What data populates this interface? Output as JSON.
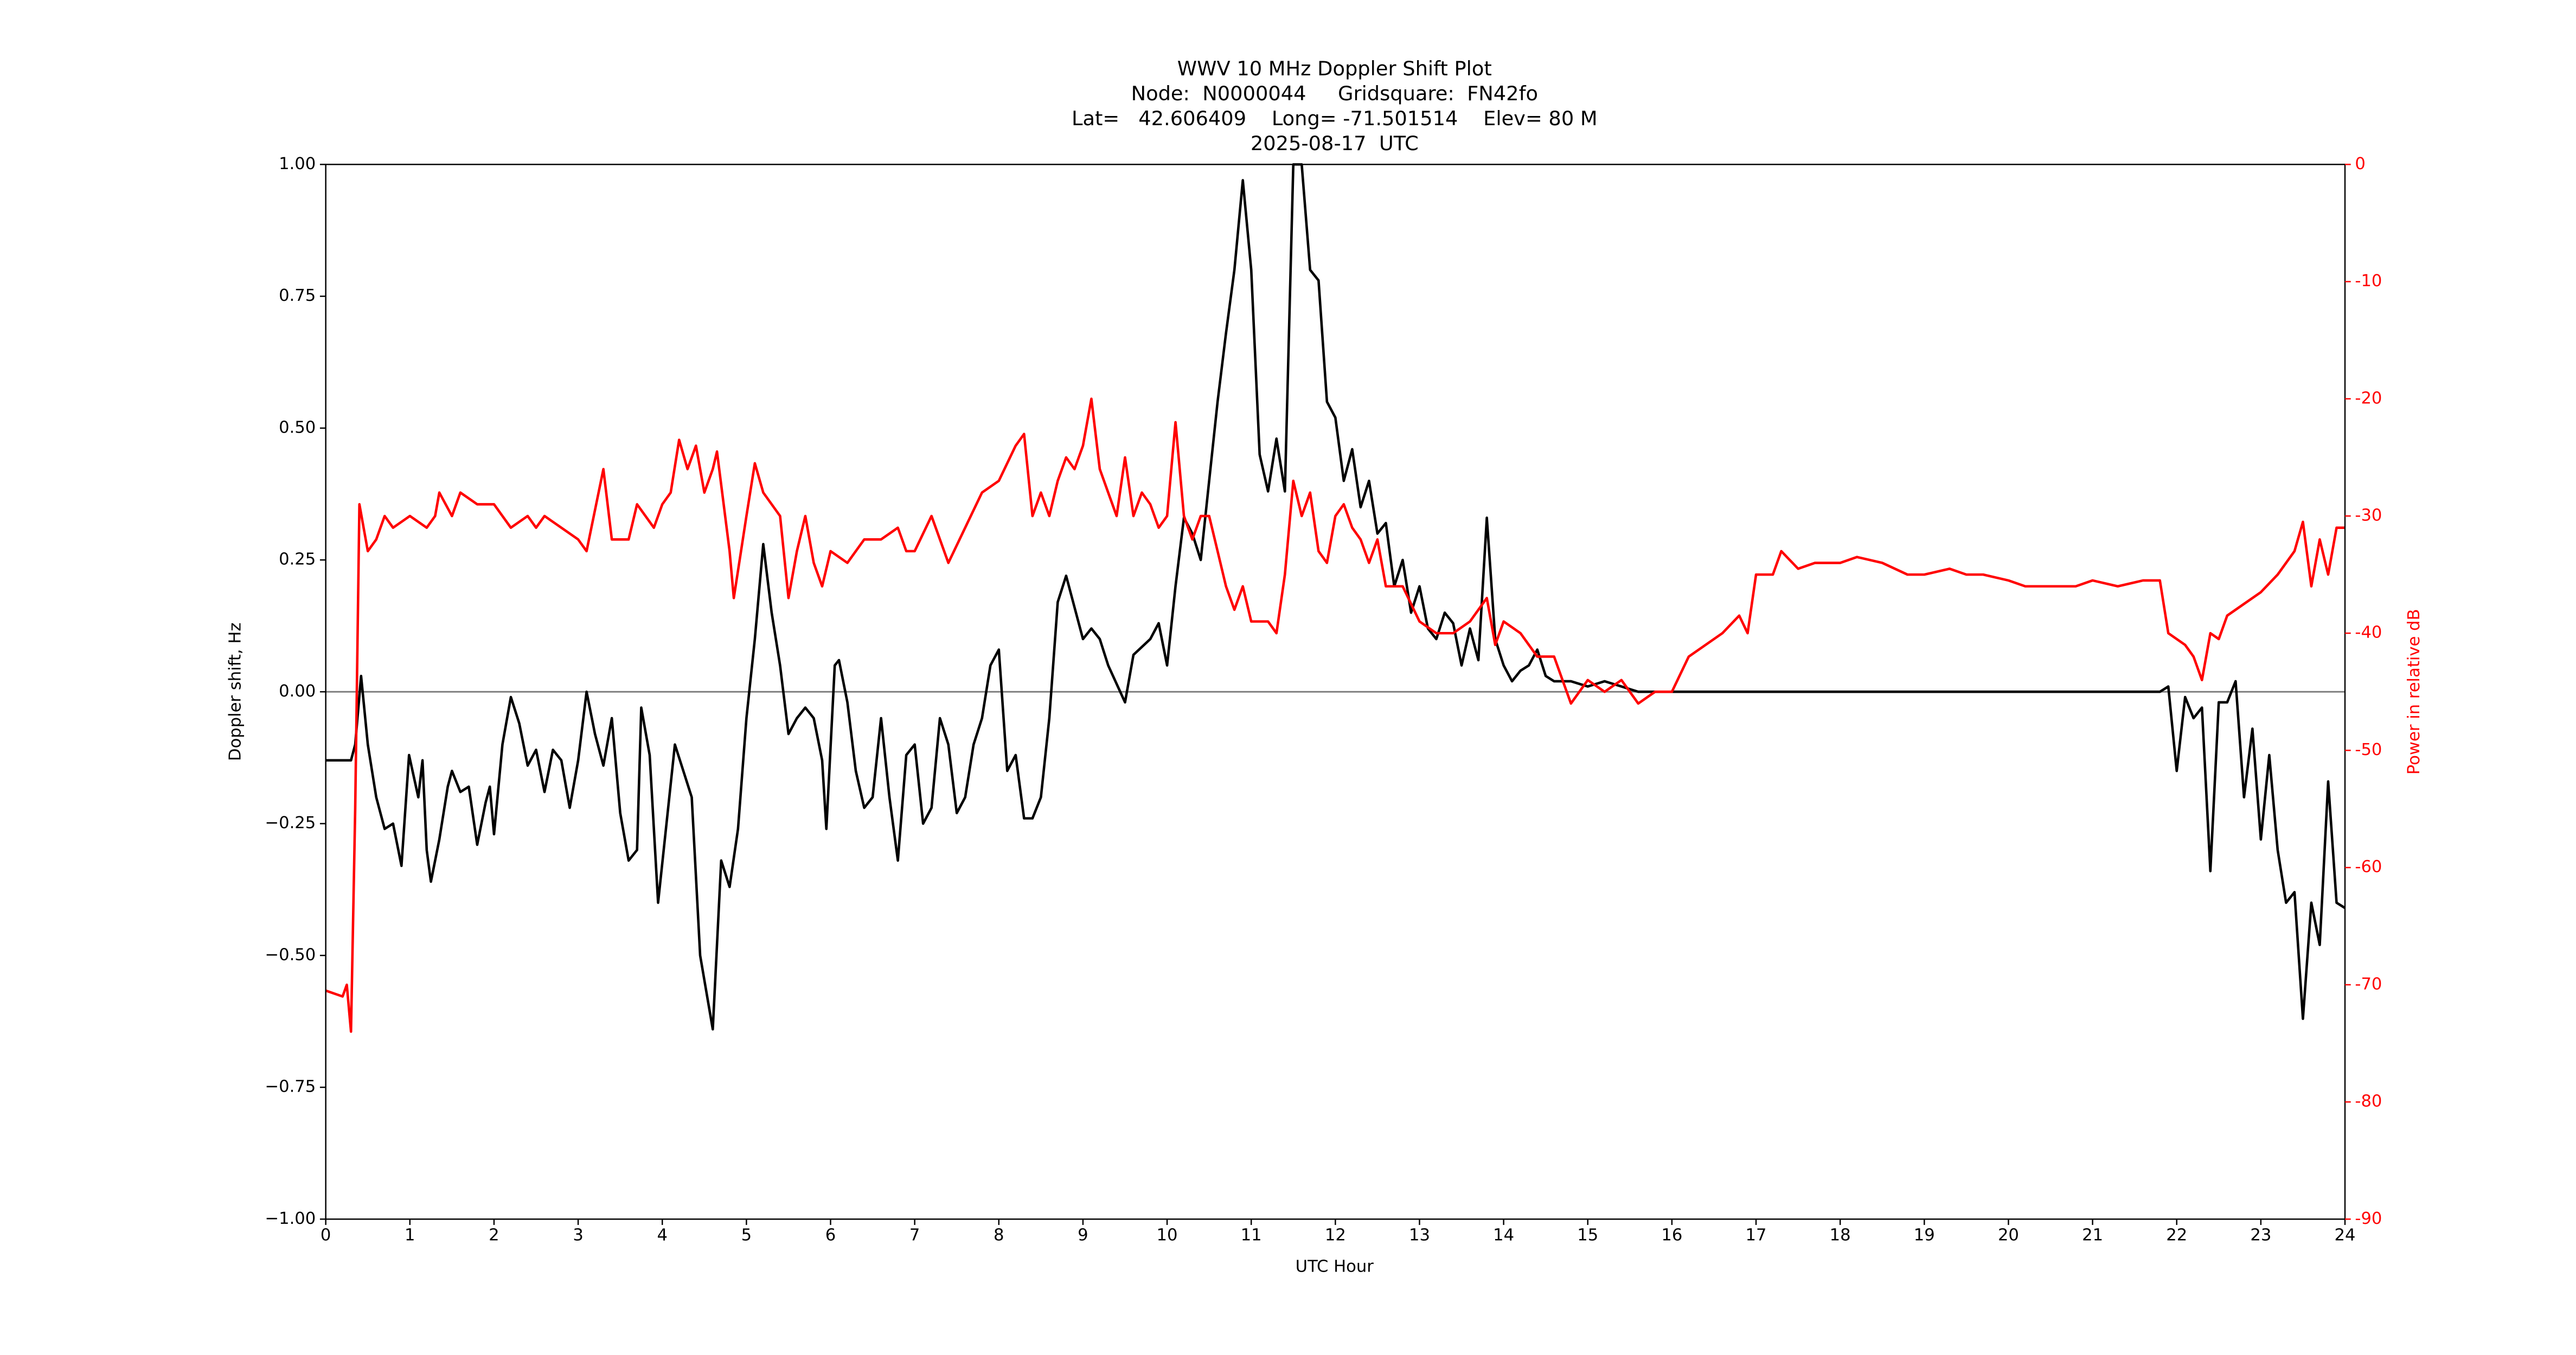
{
  "chart_data": {
    "type": "line",
    "title": [
      "WWV 10 MHz Doppler Shift Plot",
      "Node:  N0000044     Gridsquare:  FN42fo",
      "Lat=   42.606409    Long= -71.501514    Elev= 80 M",
      "2025-08-17  UTC"
    ],
    "xlabel": "UTC Hour",
    "ylabel": "Doppler shift, Hz",
    "y2label": "Power in relative dB",
    "y2color": "#ff0000",
    "xlim": [
      0,
      24
    ],
    "xticks": [
      0,
      1,
      2,
      3,
      4,
      5,
      6,
      7,
      8,
      9,
      10,
      11,
      12,
      13,
      14,
      15,
      16,
      17,
      18,
      19,
      20,
      21,
      22,
      23,
      24
    ],
    "ylim": [
      -1,
      1
    ],
    "yticks": [
      {
        "value": -1,
        "label": "−1.00"
      },
      {
        "value": -0.75,
        "label": "−0.75"
      },
      {
        "value": -0.5,
        "label": "−0.50"
      },
      {
        "value": -0.25,
        "label": "−0.25"
      },
      {
        "value": 0,
        "label": "0.00"
      },
      {
        "value": 0.25,
        "label": "0.25"
      },
      {
        "value": 0.5,
        "label": "0.50"
      },
      {
        "value": 0.75,
        "label": "0.75"
      },
      {
        "value": 1,
        "label": "1.00"
      }
    ],
    "y2lim": [
      -90,
      0
    ],
    "y2ticks": [
      -90,
      -80,
      -70,
      -60,
      -50,
      -40,
      -30,
      -20,
      -10,
      0
    ],
    "hline": 0,
    "hline_color": "#808080",
    "series": [
      {
        "color": "#000000",
        "x": [
          0,
          0.3,
          0.35,
          0.42,
          0.5,
          0.6,
          0.7,
          0.8,
          0.9,
          0.99,
          1.1,
          1.15,
          1.2,
          1.25,
          1.35,
          1.45,
          1.5,
          1.6,
          1.7,
          1.8,
          1.9,
          1.95,
          2.0,
          2.1,
          2.2,
          2.3,
          2.4,
          2.5,
          2.6,
          2.7,
          2.8,
          2.9,
          3.0,
          3.1,
          3.2,
          3.3,
          3.4,
          3.5,
          3.6,
          3.7,
          3.75,
          3.85,
          3.95,
          4.05,
          4.15,
          4.25,
          4.35,
          4.45,
          4.6,
          4.7,
          4.8,
          4.9,
          5.0,
          5.1,
          5.2,
          5.3,
          5.4,
          5.5,
          5.6,
          5.7,
          5.8,
          5.9,
          5.95,
          6.05,
          6.1,
          6.2,
          6.3,
          6.4,
          6.5,
          6.6,
          6.7,
          6.8,
          6.9,
          7.0,
          7.1,
          7.2,
          7.3,
          7.4,
          7.5,
          7.6,
          7.7,
          7.8,
          7.9,
          8.0,
          8.1,
          8.2,
          8.3,
          8.4,
          8.5,
          8.6,
          8.7,
          8.8,
          8.9,
          9.0,
          9.1,
          9.2,
          9.3,
          9.5,
          9.6,
          9.8,
          9.9,
          10.0,
          10.1,
          10.2,
          10.3,
          10.4,
          10.5,
          10.6,
          10.7,
          10.8,
          10.9,
          11.0,
          11.1,
          11.2,
          11.3,
          11.4,
          11.5,
          11.6,
          11.7,
          11.8,
          11.9,
          12.0,
          12.1,
          12.2,
          12.3,
          12.4,
          12.5,
          12.6,
          12.7,
          12.8,
          12.9,
          13.0,
          13.1,
          13.2,
          13.3,
          13.4,
          13.5,
          13.6,
          13.7,
          13.8,
          13.9,
          14.0,
          14.1,
          14.2,
          14.3,
          14.4,
          14.5,
          14.6,
          14.8,
          15.0,
          15.2,
          15.4,
          15.6,
          16.0,
          18.0,
          20.0,
          21.8,
          21.9,
          22.0,
          22.1,
          22.2,
          22.3,
          22.4,
          22.5,
          22.6,
          22.7,
          22.8,
          22.9,
          23.0,
          23.1,
          23.2,
          23.3,
          23.4,
          23.5,
          23.6,
          23.7,
          23.8,
          23.9,
          24.0
        ],
        "values": [
          -0.13,
          -0.13,
          -0.1,
          0.03,
          -0.1,
          -0.2,
          -0.26,
          -0.25,
          -0.33,
          -0.12,
          -0.2,
          -0.13,
          -0.3,
          -0.36,
          -0.28,
          -0.18,
          -0.15,
          -0.19,
          -0.18,
          -0.29,
          -0.21,
          -0.18,
          -0.27,
          -0.1,
          -0.01,
          -0.06,
          -0.14,
          -0.11,
          -0.19,
          -0.11,
          -0.13,
          -0.22,
          -0.13,
          0.0,
          -0.08,
          -0.14,
          -0.05,
          -0.23,
          -0.32,
          -0.3,
          -0.03,
          -0.12,
          -0.4,
          -0.25,
          -0.1,
          -0.15,
          -0.2,
          -0.5,
          -0.64,
          -0.32,
          -0.37,
          -0.26,
          -0.05,
          0.1,
          0.28,
          0.15,
          0.05,
          -0.08,
          -0.05,
          -0.03,
          -0.05,
          -0.13,
          -0.26,
          0.05,
          0.06,
          -0.02,
          -0.15,
          -0.22,
          -0.2,
          -0.05,
          -0.2,
          -0.32,
          -0.12,
          -0.1,
          -0.25,
          -0.22,
          -0.05,
          -0.1,
          -0.23,
          -0.2,
          -0.1,
          -0.05,
          0.05,
          0.08,
          -0.15,
          -0.12,
          -0.24,
          -0.24,
          -0.2,
          -0.05,
          0.17,
          0.22,
          0.16,
          0.1,
          0.12,
          0.1,
          0.05,
          -0.02,
          0.07,
          0.1,
          0.13,
          0.05,
          0.2,
          0.33,
          0.3,
          0.25,
          0.4,
          0.55,
          0.68,
          0.8,
          0.97,
          0.8,
          0.45,
          0.38,
          0.48,
          0.38,
          1.0,
          1.0,
          0.8,
          0.78,
          0.55,
          0.52,
          0.4,
          0.46,
          0.35,
          0.4,
          0.3,
          0.32,
          0.2,
          0.25,
          0.15,
          0.2,
          0.12,
          0.1,
          0.15,
          0.13,
          0.05,
          0.12,
          0.06,
          0.33,
          0.1,
          0.05,
          0.02,
          0.04,
          0.05,
          0.08,
          0.03,
          0.02,
          0.02,
          0.01,
          0.02,
          0.01,
          0.0,
          0.0,
          0.0,
          0.0,
          0.0,
          0.01,
          -0.15,
          -0.01,
          -0.05,
          -0.03,
          -0.34,
          -0.02,
          -0.02,
          0.02,
          -0.2,
          -0.07,
          -0.28,
          -0.12,
          -0.3,
          -0.4,
          -0.38,
          -0.62,
          -0.4,
          -0.48,
          -0.17,
          -0.4,
          -0.41
        ]
      },
      {
        "color": "#ff0000",
        "axis": "y2",
        "x": [
          0,
          0.2,
          0.25,
          0.3,
          0.35,
          0.4,
          0.5,
          0.6,
          0.7,
          0.8,
          1.0,
          1.2,
          1.3,
          1.35,
          1.5,
          1.6,
          1.8,
          2.0,
          2.2,
          2.4,
          2.5,
          2.6,
          2.8,
          3.0,
          3.1,
          3.3,
          3.4,
          3.6,
          3.7,
          3.9,
          4.0,
          4.1,
          4.2,
          4.3,
          4.4,
          4.5,
          4.6,
          4.65,
          4.8,
          4.85,
          5.0,
          5.1,
          5.2,
          5.4,
          5.5,
          5.6,
          5.7,
          5.8,
          5.9,
          6.0,
          6.2,
          6.4,
          6.6,
          6.8,
          6.9,
          7.0,
          7.2,
          7.4,
          7.6,
          7.8,
          8.0,
          8.2,
          8.3,
          8.4,
          8.5,
          8.6,
          8.7,
          8.8,
          8.9,
          9.0,
          9.1,
          9.2,
          9.3,
          9.4,
          9.5,
          9.6,
          9.7,
          9.8,
          9.9,
          10.0,
          10.1,
          10.2,
          10.3,
          10.4,
          10.5,
          10.6,
          10.7,
          10.8,
          10.9,
          11.0,
          11.2,
          11.3,
          11.4,
          11.5,
          11.6,
          11.7,
          11.8,
          11.9,
          12.0,
          12.1,
          12.2,
          12.3,
          12.4,
          12.5,
          12.6,
          12.8,
          13.0,
          13.2,
          13.4,
          13.6,
          13.8,
          13.9,
          14.0,
          14.2,
          14.4,
          14.6,
          14.8,
          15.0,
          15.2,
          15.4,
          15.6,
          15.8,
          16.0,
          16.2,
          16.4,
          16.6,
          16.8,
          16.9,
          17.0,
          17.2,
          17.3,
          17.5,
          17.7,
          18.0,
          18.2,
          18.5,
          18.8,
          19.0,
          19.3,
          19.5,
          19.7,
          20.0,
          20.2,
          20.5,
          20.8,
          21.0,
          21.3,
          21.6,
          21.8,
          21.9,
          22.1,
          22.2,
          22.3,
          22.4,
          22.5,
          22.6,
          22.8,
          23.0,
          23.2,
          23.4,
          23.5,
          23.6,
          23.7,
          23.8,
          23.9,
          24.0
        ],
        "values": [
          -70.5,
          -71,
          -70,
          -74,
          -55,
          -29,
          -33,
          -32,
          -30,
          -31,
          -30,
          -31,
          -30,
          -28,
          -30,
          -28,
          -29,
          -29,
          -31,
          -30,
          -31,
          -30,
          -31,
          -32,
          -33,
          -26,
          -32,
          -32,
          -29,
          -31,
          -29,
          -28,
          -23.5,
          -26,
          -24,
          -28,
          -26,
          -24.5,
          -33,
          -37,
          -30,
          -25.5,
          -28,
          -30,
          -37,
          -33,
          -30,
          -34,
          -36,
          -33,
          -34,
          -32,
          -32,
          -31,
          -33,
          -33,
          -30,
          -34,
          -31,
          -28,
          -27,
          -24,
          -23,
          -30,
          -28,
          -30,
          -27,
          -25,
          -26,
          -24,
          -20,
          -26,
          -28,
          -30,
          -25,
          -30,
          -28,
          -29,
          -31,
          -30,
          -22,
          -30,
          -32,
          -30,
          -30,
          -33,
          -36,
          -38,
          -36,
          -39,
          -39,
          -40,
          -35,
          -27,
          -30,
          -28,
          -33,
          -34,
          -30,
          -29,
          -31,
          -32,
          -34,
          -32,
          -36,
          -36,
          -39,
          -40,
          -40,
          -39,
          -37,
          -41,
          -39,
          -40,
          -42,
          -42,
          -46,
          -44,
          -45,
          -44,
          -46,
          -45,
          -45,
          -42,
          -41,
          -40,
          -38.5,
          -40,
          -35,
          -35,
          -33,
          -34.5,
          -34,
          -34,
          -33.5,
          -34,
          -35,
          -35,
          -34.5,
          -35,
          -35,
          -35.5,
          -36,
          -36,
          -36,
          -35.5,
          -36,
          -35.5,
          -35.5,
          -40,
          -41,
          -42,
          -44,
          -40,
          -40.5,
          -38.5,
          -37.5,
          -36.5,
          -35,
          -33,
          -30.5,
          -36,
          -32,
          -35,
          -31,
          -31
        ]
      }
    ]
  }
}
